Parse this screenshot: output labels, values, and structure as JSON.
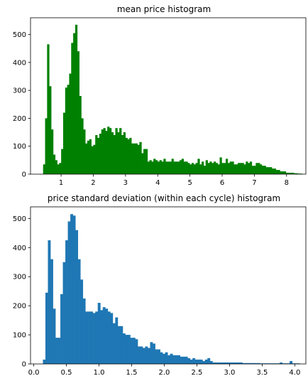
{
  "chart_data": [
    {
      "type": "bar",
      "title": "mean price histogram",
      "xlabel": "",
      "ylabel": "",
      "color": "#008000",
      "xlim": [
        0.05,
        8.6
      ],
      "ylim": [
        0,
        560
      ],
      "xticks": [
        1,
        2,
        3,
        4,
        5,
        6,
        7,
        8
      ],
      "yticks": [
        0,
        100,
        200,
        300,
        400,
        500
      ],
      "bin_start": 0.44,
      "bin_width": 0.0623,
      "values": [
        35,
        200,
        465,
        315,
        160,
        70,
        50,
        35,
        40,
        90,
        220,
        310,
        320,
        360,
        470,
        505,
        535,
        440,
        280,
        200,
        160,
        110,
        120,
        125,
        100,
        105,
        140,
        130,
        145,
        160,
        165,
        155,
        170,
        165,
        150,
        140,
        165,
        150,
        165,
        140,
        150,
        130,
        125,
        130,
        110,
        110,
        110,
        105,
        115,
        75,
        90,
        90,
        45,
        50,
        45,
        55,
        50,
        45,
        50,
        45,
        55,
        45,
        45,
        45,
        55,
        45,
        45,
        45,
        50,
        55,
        45,
        45,
        40,
        35,
        40,
        35,
        40,
        55,
        35,
        45,
        30,
        50,
        40,
        45,
        40,
        45,
        40,
        35,
        60,
        40,
        40,
        55,
        40,
        45,
        45,
        35,
        35,
        40,
        40,
        40,
        35,
        45,
        40,
        45,
        30,
        30,
        40,
        40,
        35,
        30,
        30,
        25,
        25,
        25,
        20,
        20,
        15,
        15,
        10,
        10,
        10,
        5,
        5,
        5,
        5,
        3,
        3,
        2,
        2
      ]
    },
    {
      "type": "bar",
      "title": "price standard deviation (within each cycle) histogram",
      "xlabel": "",
      "ylabel": "",
      "color": "#1f77b4",
      "xlim": [
        -0.05,
        4.17
      ],
      "ylim": [
        0,
        540
      ],
      "xticks": [
        0.0,
        0.5,
        1.0,
        1.5,
        2.0,
        2.5,
        3.0,
        3.5,
        4.0
      ],
      "xtick_labels": [
        "0.0",
        "0.5",
        "1.0",
        "1.5",
        "2.0",
        "2.5",
        "3.0",
        "3.5",
        "4.0"
      ],
      "yticks": [
        0,
        100,
        200,
        300,
        400,
        500
      ],
      "bin_start": 0.14,
      "bin_width": 0.0382,
      "values": [
        15,
        245,
        425,
        360,
        190,
        90,
        90,
        240,
        350,
        425,
        490,
        515,
        510,
        460,
        360,
        290,
        225,
        180,
        180,
        180,
        175,
        180,
        210,
        185,
        195,
        190,
        180,
        175,
        140,
        160,
        130,
        130,
        105,
        100,
        100,
        90,
        90,
        85,
        60,
        60,
        55,
        60,
        55,
        75,
        70,
        50,
        50,
        40,
        35,
        40,
        30,
        35,
        30,
        30,
        30,
        25,
        25,
        25,
        20,
        15,
        20,
        15,
        15,
        15,
        10,
        15,
        20,
        10,
        5,
        5,
        5,
        5,
        5,
        5,
        5,
        5,
        5,
        5,
        5,
        5,
        3,
        3,
        3,
        3,
        3,
        3,
        3,
        2,
        2,
        2,
        2,
        2,
        2,
        2,
        2,
        5,
        2,
        2,
        2,
        10,
        2,
        2,
        2
      ]
    }
  ]
}
